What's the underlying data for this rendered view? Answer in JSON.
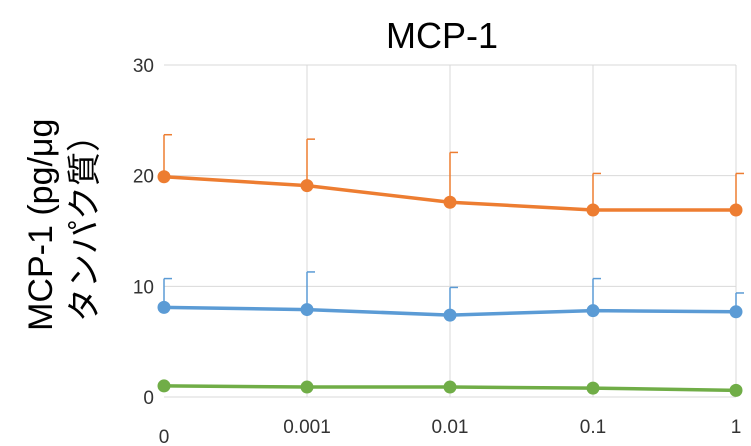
{
  "chart_data": {
    "type": "line",
    "title": "MCP-1",
    "ylabel_lines": [
      "MCP-1 (pg/μg",
      "タンパク質）"
    ],
    "xlabel": "",
    "categories": [
      "0",
      "0.001",
      "0.01",
      "0.1",
      "1"
    ],
    "ylim": [
      0,
      30
    ],
    "yticks": [
      "0",
      "10",
      "20",
      "30"
    ],
    "grid": true,
    "legend": "none",
    "series": [
      {
        "color": "#ED7D31",
        "values": [
          19.9,
          19.1,
          17.6,
          16.9,
          16.9
        ],
        "errors": [
          3.8,
          4.2,
          4.5,
          3.3,
          3.3
        ]
      },
      {
        "color": "#5B9BD5",
        "values": [
          8.1,
          7.9,
          7.4,
          7.8,
          7.7
        ],
        "errors": [
          2.6,
          3.4,
          2.5,
          2.9,
          1.7
        ]
      },
      {
        "color": "#70AD47",
        "values": [
          1.0,
          0.9,
          0.9,
          0.8,
          0.6
        ],
        "errors": [
          0,
          0,
          0,
          0,
          0
        ]
      }
    ]
  }
}
